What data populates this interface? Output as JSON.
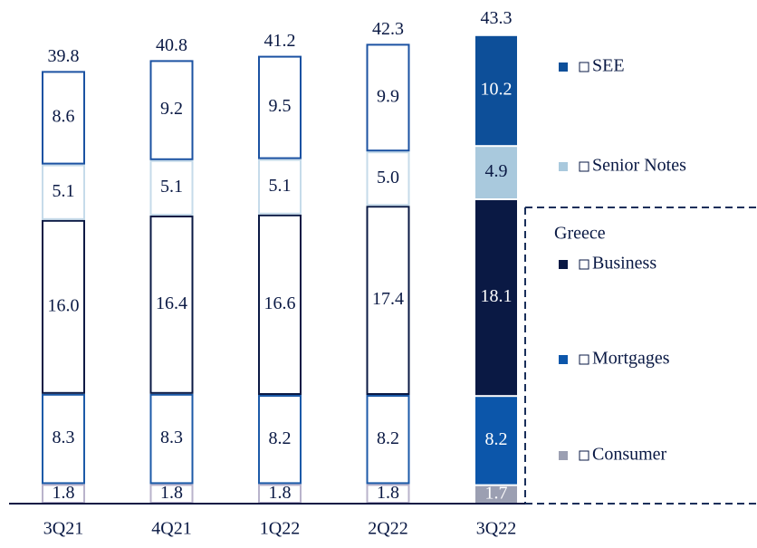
{
  "chart_data": {
    "type": "stacked_bar",
    "categories": [
      "3Q21",
      "4Q21",
      "1Q22",
      "2Q22",
      "3Q22"
    ],
    "filled": [
      false,
      false,
      false,
      false,
      true
    ],
    "series": [
      {
        "name": "Consumer",
        "color": "#9b9fb2",
        "outline": "#b9b3cb",
        "text_color": "#ffffff",
        "values": [
          1.8,
          1.8,
          1.8,
          1.8,
          1.7
        ],
        "value_labels": [
          "1.8",
          "1.8",
          "1.8",
          "1.8",
          "1.7"
        ]
      },
      {
        "name": "Mortgages",
        "color": "#0c56aa",
        "outline": "#1c5aa8",
        "text_color": "#ffffff",
        "values": [
          8.3,
          8.3,
          8.2,
          8.2,
          8.2
        ],
        "value_labels": [
          "8.3",
          "8.3",
          "8.2",
          "8.2",
          "8.2"
        ]
      },
      {
        "name": "Business",
        "color": "#0a1944",
        "outline": "#0a1944",
        "text_color": "#ffffff",
        "values": [
          16.0,
          16.4,
          16.6,
          17.4,
          18.1
        ],
        "value_labels": [
          "16.0",
          "16.4",
          "16.6",
          "17.4",
          "18.1"
        ]
      },
      {
        "name": "Senior Notes",
        "color": "#a9c9dd",
        "outline": "#c6dbea",
        "text_color": "#0a1944",
        "values": [
          5.1,
          5.1,
          5.1,
          5.0,
          4.9
        ],
        "value_labels": [
          "5.1",
          "5.1",
          "5.1",
          "5.0",
          "4.9"
        ]
      },
      {
        "name": "SEE",
        "color": "#0d4f99",
        "outline": "#1b52a2",
        "text_color": "#ffffff",
        "values": [
          8.6,
          9.2,
          9.5,
          9.9,
          10.2
        ],
        "value_labels": [
          "8.6",
          "9.2",
          "9.5",
          "9.9",
          "10.2"
        ]
      }
    ],
    "totals": [
      39.8,
      40.8,
      41.2,
      42.3,
      43.3
    ],
    "group_label": "Greece"
  }
}
